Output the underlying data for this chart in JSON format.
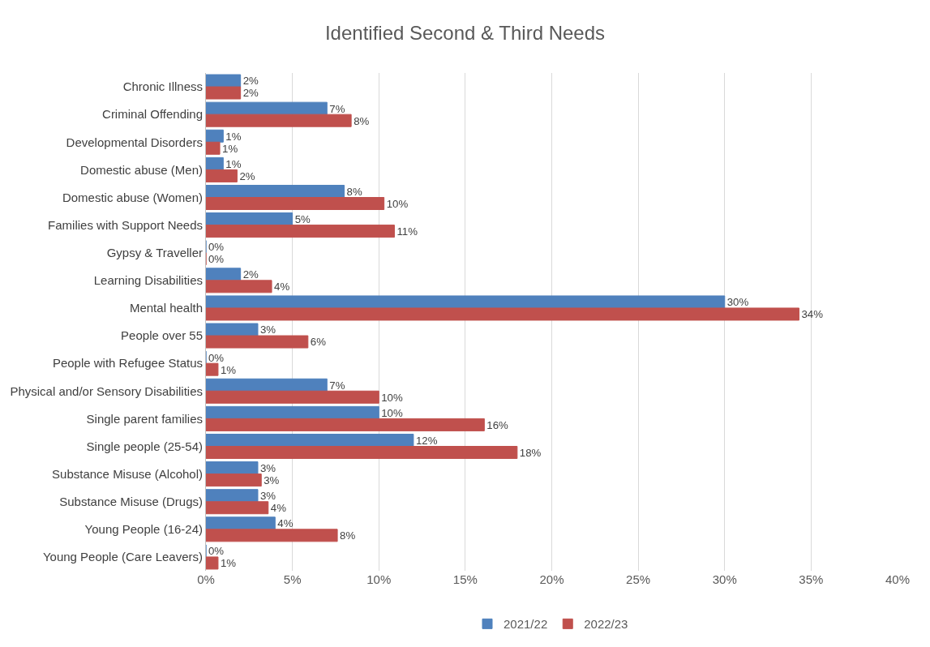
{
  "chart_data": {
    "type": "bar",
    "orientation": "horizontal",
    "title": "Identified Second & Third Needs",
    "categories": [
      "Chronic Illness",
      "Criminal Offending",
      "Developmental Disorders",
      "Domestic abuse (Men)",
      "Domestic abuse (Women)",
      "Families with Support Needs",
      "Gypsy & Traveller",
      "Learning Disabilities",
      "Mental health",
      "People over 55",
      "People with Refugee Status",
      "Physical and/or Sensory Disabilities",
      "Single parent families",
      "Single people (25-54)",
      "Substance Misuse (Alcohol)",
      "Substance Misuse (Drugs)",
      "Young People (16-24)",
      "Young People (Care Leavers)"
    ],
    "series": [
      {
        "name": "2021/22",
        "color": "#4f81bd",
        "values": [
          2.0,
          7.0,
          1.0,
          1.0,
          8.0,
          5.0,
          0,
          2.0,
          30.0,
          3.0,
          0,
          7.0,
          10.0,
          12.0,
          3.0,
          3.0,
          4.0,
          0
        ],
        "value_labels": [
          "2%",
          "7%",
          "1%",
          "1%",
          "8%",
          "5%",
          "0%",
          "2%",
          "30%",
          "3%",
          "0%",
          "7%",
          "10%",
          "12%",
          "3%",
          "3%",
          "4%",
          "0%"
        ]
      },
      {
        "name": "2022/23",
        "color": "#c0504d",
        "values": [
          2.0,
          8.4,
          0.8,
          1.8,
          10.3,
          10.9,
          0,
          3.8,
          34.3,
          5.9,
          0.7,
          10.0,
          16.1,
          18.0,
          3.2,
          3.6,
          7.6,
          0.7
        ],
        "value_labels": [
          "2%",
          "8%",
          "1%",
          "2%",
          "10%",
          "11%",
          "0%",
          "4%",
          "34%",
          "6%",
          "1%",
          "10%",
          "16%",
          "18%",
          "3%",
          "4%",
          "8%",
          "1%"
        ]
      }
    ],
    "xlim": [
      0,
      40
    ],
    "xticks": [
      {
        "value": 0,
        "label": "0%"
      },
      {
        "value": 5,
        "label": "5%"
      },
      {
        "value": 10,
        "label": "10%"
      },
      {
        "value": 15,
        "label": "15%"
      },
      {
        "value": 20,
        "label": "20%"
      },
      {
        "value": 25,
        "label": "25%"
      },
      {
        "value": 30,
        "label": "30%"
      },
      {
        "value": 35,
        "label": "35%"
      },
      {
        "value": 40,
        "label": "40%"
      }
    ],
    "grid": "x",
    "legend": "bottom"
  }
}
